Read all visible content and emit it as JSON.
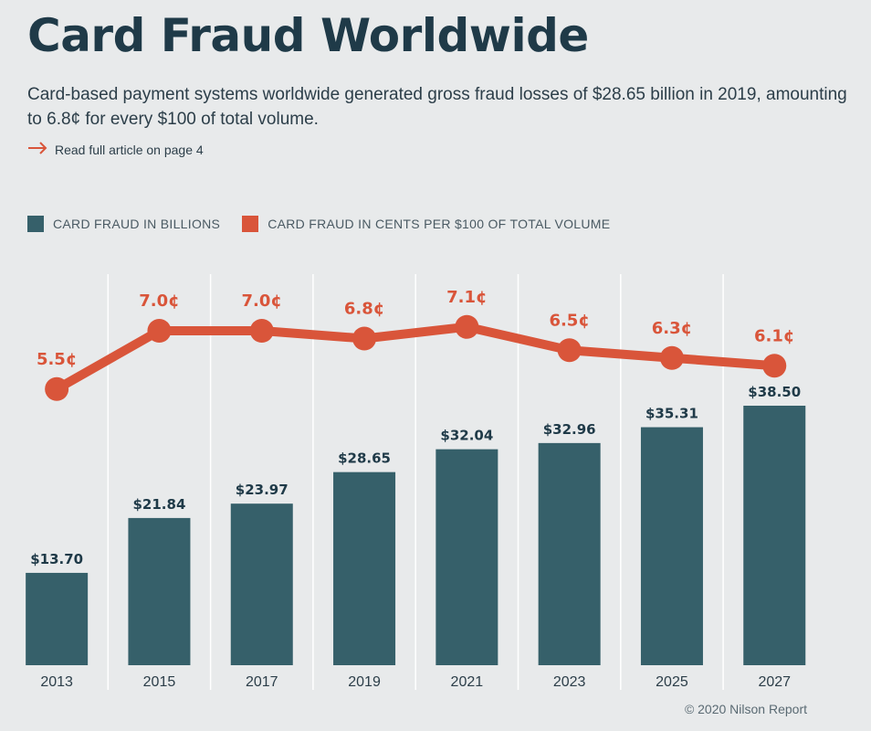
{
  "header": {
    "title": "Card Fraud Worldwide",
    "subtitle": "Card-based payment systems worldwide generated gross fraud losses of $28.65 billion in 2019, amounting to 6.8¢ for every $100 of total volume.",
    "link_label": "Read full article on page 4"
  },
  "colors": {
    "bar": "#36606a",
    "line": "#d9553a",
    "title": "#1f3a48",
    "background": "#e8eaeb"
  },
  "icons": {
    "link_icon": "arrow-right-icon"
  },
  "credit": "© 2020 Nilson Report",
  "chart_data": {
    "type": "bar",
    "categories": [
      "2013",
      "2015",
      "2017",
      "2019",
      "2021",
      "2023",
      "2025",
      "2027"
    ],
    "series": [
      {
        "name": "CARD FRAUD IN BILLIONS",
        "type": "bar",
        "values": [
          13.7,
          21.84,
          23.97,
          28.65,
          32.04,
          32.96,
          35.31,
          38.5
        ],
        "labels": [
          "$13.70",
          "$21.84",
          "$23.97",
          "$28.65",
          "$32.04",
          "$32.96",
          "$35.31",
          "$38.50"
        ]
      },
      {
        "name": "CARD FRAUD IN CENTS PER $100 OF TOTAL VOLUME",
        "type": "line",
        "values": [
          5.5,
          7.0,
          7.0,
          6.8,
          7.1,
          6.5,
          6.3,
          6.1
        ],
        "labels": [
          "5.5¢",
          "7.0¢",
          "7.0¢",
          "6.8¢",
          "7.1¢",
          "6.5¢",
          "6.3¢",
          "6.1¢"
        ]
      }
    ],
    "legend_position": "top-left",
    "grid": "vertical"
  }
}
